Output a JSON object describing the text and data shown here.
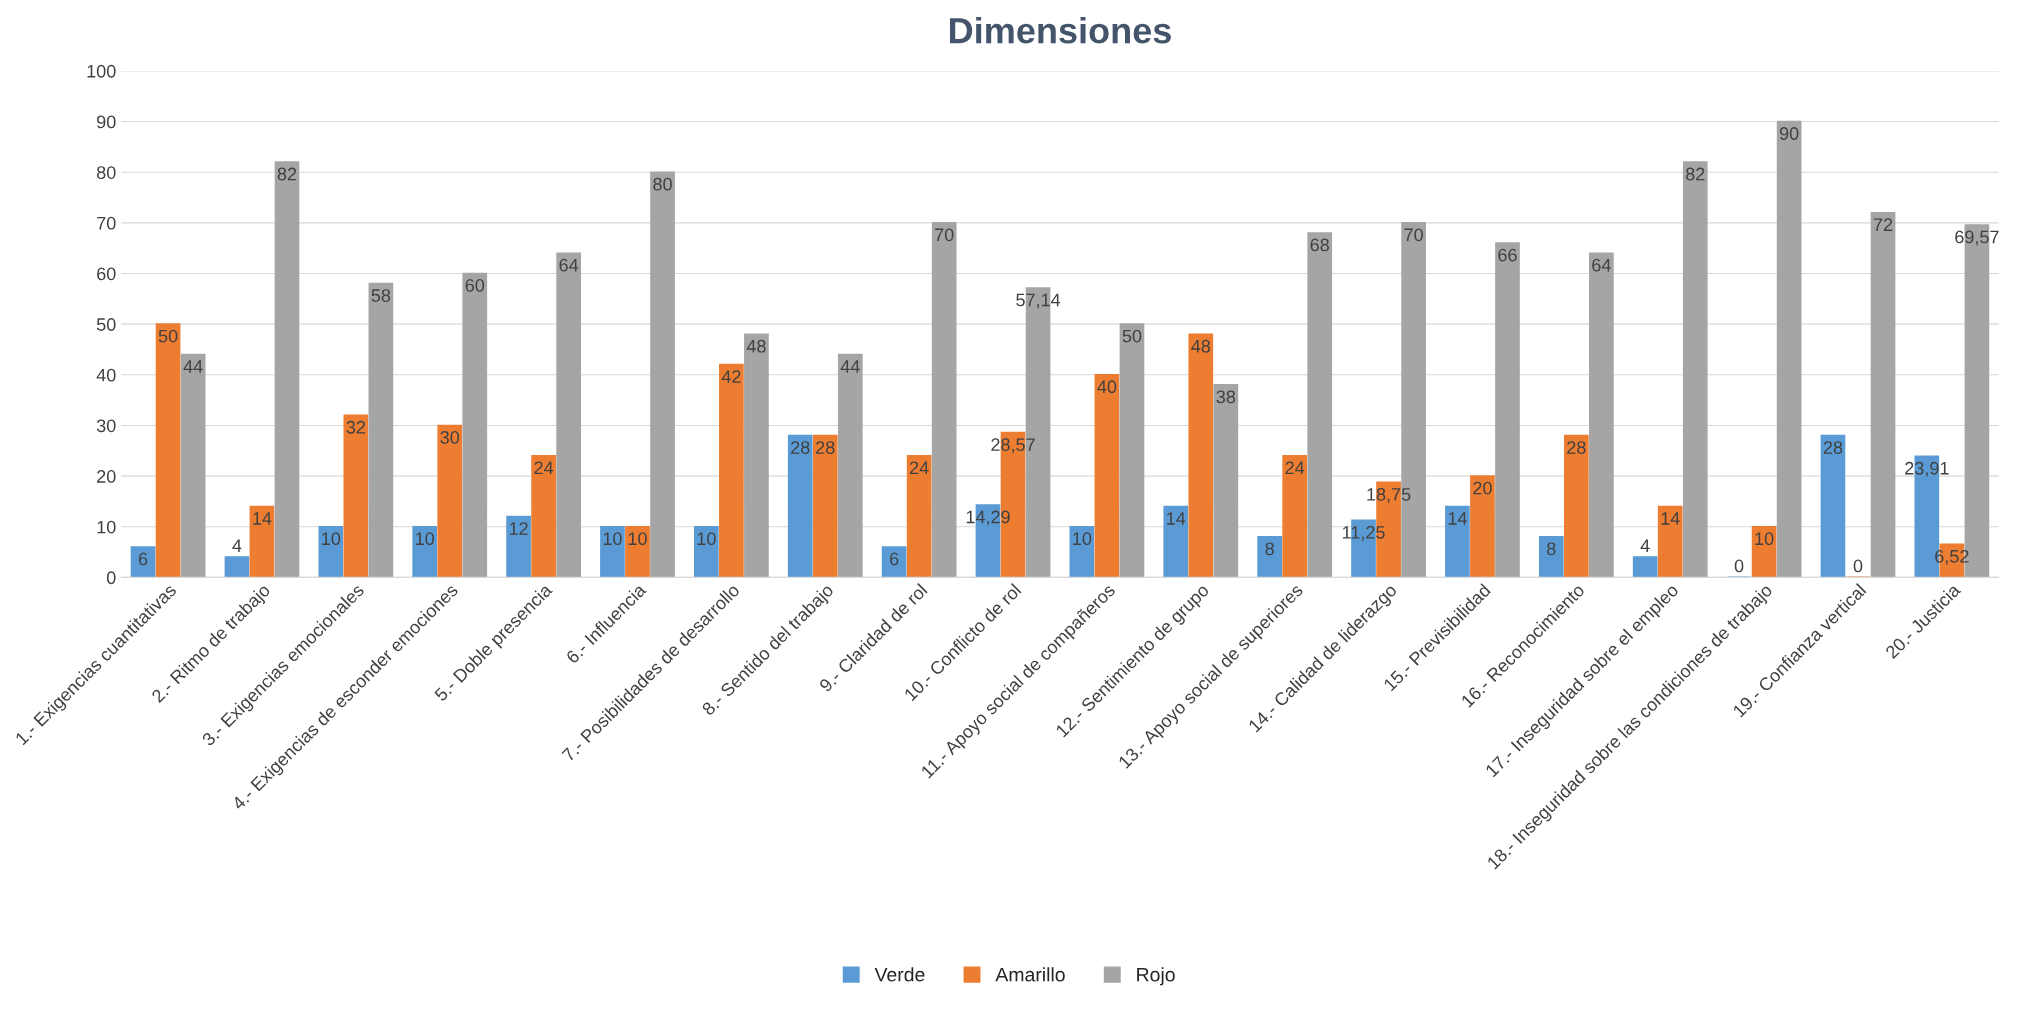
{
  "chart_data": {
    "type": "bar",
    "title": "Dimensiones",
    "categories": [
      "1.- Exigencias cuantitativas",
      "2.- Ritmo de trabajo",
      "3.- Exigencias emocionales",
      "4.- Exigencias de esconder emociones",
      "5.- Doble presencia",
      "6.- Influencia",
      "7.- Posibilidades de desarrollo",
      "8.- Sentido del trabajo",
      "9.- Claridad de rol",
      "10.- Conflicto de rol",
      "11.- Apoyo social de compañeros",
      "12.- Sentimiento de grupo",
      "13.- Apoyo social de superiores",
      "14.- Calidad de liderazgo",
      "15.- Previsibilidad",
      "16.- Reconocimiento",
      "17.- Inseguridad sobre el empleo",
      "18.- Inseguridad sobre las condiciones de trabajo",
      "19.- Confianza vertical",
      "20.- Justicia"
    ],
    "series": [
      {
        "name": "Verde",
        "color": "#5b9bd5",
        "values": [
          6,
          4,
          10,
          10,
          12,
          10,
          10,
          28,
          6,
          14.29,
          10,
          14,
          8,
          11.25,
          14,
          8,
          4,
          0,
          28,
          23.91
        ],
        "value_labels": [
          "6",
          "4",
          "10",
          "10",
          "12",
          "10",
          "10",
          "28",
          "6",
          "14,29",
          "10",
          "14",
          "8",
          "11,25",
          "14",
          "8",
          "4",
          "0",
          "28",
          "23,91"
        ]
      },
      {
        "name": "Amarillo",
        "color": "#ed7d31",
        "values": [
          50,
          14,
          32,
          30,
          24,
          10,
          42,
          28,
          24,
          28.57,
          40,
          48,
          24,
          18.75,
          20,
          28,
          14,
          10,
          0,
          6.52
        ],
        "value_labels": [
          "50",
          "14",
          "32",
          "30",
          "24",
          "10",
          "42",
          "28",
          "24",
          "28,57",
          "40",
          "48",
          "24",
          "18,75",
          "20",
          "28",
          "14",
          "10",
          "0",
          "6,52"
        ]
      },
      {
        "name": "Rojo",
        "color": "#a5a5a5",
        "values": [
          44,
          82,
          58,
          60,
          64,
          80,
          48,
          44,
          70,
          57.14,
          50,
          38,
          68,
          70,
          66,
          64,
          82,
          90,
          72,
          69.57
        ],
        "value_labels": [
          "44",
          "82",
          "58",
          "60",
          "64",
          "80",
          "48",
          "44",
          "70",
          "57,14",
          "50",
          "38",
          "68",
          "70",
          "66",
          "64",
          "82",
          "90",
          "72",
          "69,57"
        ]
      }
    ],
    "ylim": [
      0,
      100
    ],
    "yticks": [
      0,
      10,
      20,
      30,
      40,
      50,
      60,
      70,
      80,
      90,
      100
    ],
    "grid": "y",
    "legend": "bottom"
  }
}
